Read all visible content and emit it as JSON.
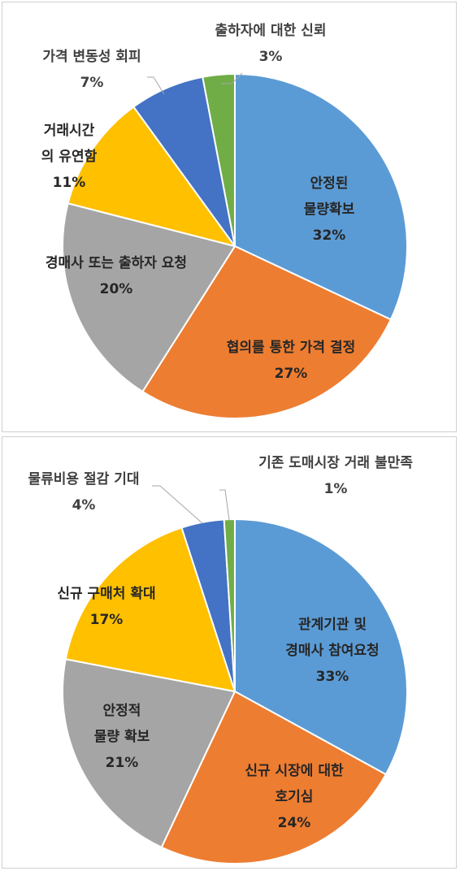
{
  "chart_data": [
    {
      "type": "pie",
      "slices": [
        {
          "name_lines": [
            "안정된",
            "물량확보"
          ],
          "value": 32,
          "pct": "32%",
          "color": "#5B9BD5"
        },
        {
          "name_lines": [
            "협의를 통한 가격 결정"
          ],
          "value": 27,
          "pct": "27%",
          "color": "#ED7D31"
        },
        {
          "name_lines": [
            "경매사 또는 출하자 요청"
          ],
          "value": 20,
          "pct": "20%",
          "color": "#A5A5A5"
        },
        {
          "name_lines": [
            "거래시간",
            "의 유연함"
          ],
          "value": 11,
          "pct": "11%",
          "color": "#FFC000"
        },
        {
          "name_lines": [
            "가격 변동성 회피"
          ],
          "value": 7,
          "pct": "7%",
          "color": "#4472C4"
        },
        {
          "name_lines": [
            "출하자에 대한 신뢰"
          ],
          "value": 3,
          "pct": "3%",
          "color": "#70AD47"
        }
      ]
    },
    {
      "type": "pie",
      "slices": [
        {
          "name_lines": [
            "관계기관 및",
            "경매사 참여요청"
          ],
          "value": 33,
          "pct": "33%",
          "color": "#5B9BD5"
        },
        {
          "name_lines": [
            "신규 시장에 대한",
            "호기심"
          ],
          "value": 24,
          "pct": "24%",
          "color": "#ED7D31"
        },
        {
          "name_lines": [
            "안정적",
            "물량 확보"
          ],
          "value": 21,
          "pct": "21%",
          "color": "#A5A5A5"
        },
        {
          "name_lines": [
            "신규 구매처 확대"
          ],
          "value": 17,
          "pct": "17%",
          "color": "#FFC000"
        },
        {
          "name_lines": [
            "물류비용 절감 기대"
          ],
          "value": 4,
          "pct": "4%",
          "color": "#4472C4"
        },
        {
          "name_lines": [
            "기존 도매시장 거래 불만족"
          ],
          "value": 1,
          "pct": "1%",
          "color": "#70AD47"
        }
      ]
    }
  ]
}
